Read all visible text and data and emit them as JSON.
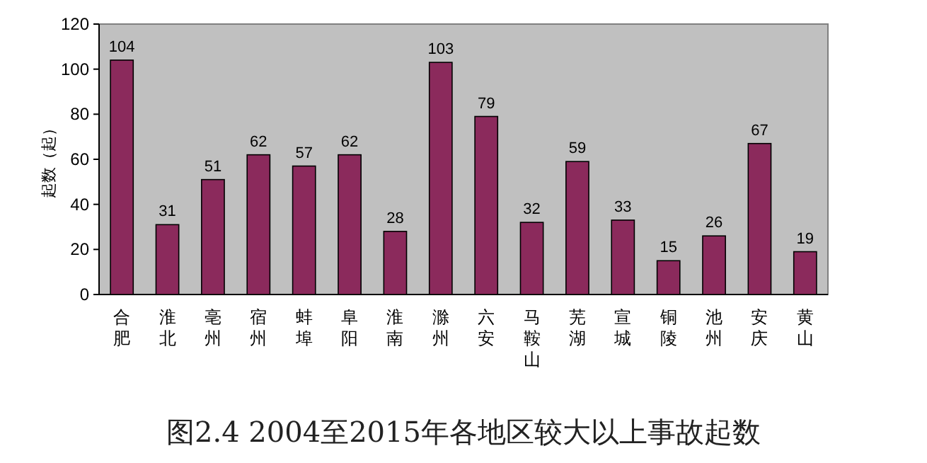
{
  "chart_data": {
    "type": "bar",
    "title": "图2.4 2004至2015年各地区较大以上事故起数",
    "ylabel": "起数（起）",
    "categories": [
      "合肥",
      "淮北",
      "亳州",
      "宿州",
      "蚌埠",
      "阜阳",
      "淮南",
      "滁州",
      "六安",
      "马鞍山",
      "芜湖",
      "宣城",
      "铜陵",
      "池州",
      "安庆",
      "黄山"
    ],
    "values": [
      104,
      31,
      51,
      62,
      57,
      62,
      28,
      103,
      79,
      32,
      59,
      33,
      15,
      26,
      67,
      19
    ],
    "color": "#8b2a5c",
    "ylim": [
      0,
      120
    ],
    "yticks": [
      0,
      20,
      40,
      60,
      80,
      100,
      120
    ],
    "data_labels": true
  }
}
